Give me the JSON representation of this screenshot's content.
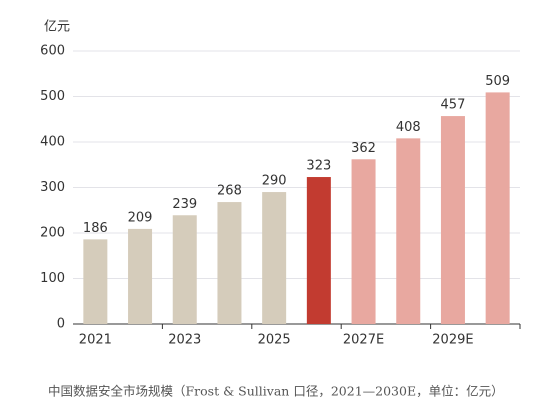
{
  "chart_data": {
    "type": "bar",
    "y_label": "亿元",
    "caption": "中国数据安全市场规模（Frost & Sullivan 口径，2021—2030E，单位：亿元）",
    "categories": [
      "2021",
      null,
      "2023",
      null,
      "2025",
      null,
      "2027E",
      null,
      "2029E",
      null
    ],
    "values": [
      186,
      209,
      239,
      268,
      290,
      323,
      362,
      408,
      457,
      509
    ],
    "colors": [
      "#d5ccbb",
      "#d5ccbb",
      "#d5ccbb",
      "#d5ccbb",
      "#d5ccbb",
      "#c23b30",
      "#e8a8a0",
      "#e8a8a0",
      "#e8a8a0",
      "#e8a8a0"
    ],
    "ylim": [
      0,
      600
    ],
    "yticks": [
      0,
      100,
      200,
      300,
      400,
      500,
      600
    ],
    "grid": true
  }
}
